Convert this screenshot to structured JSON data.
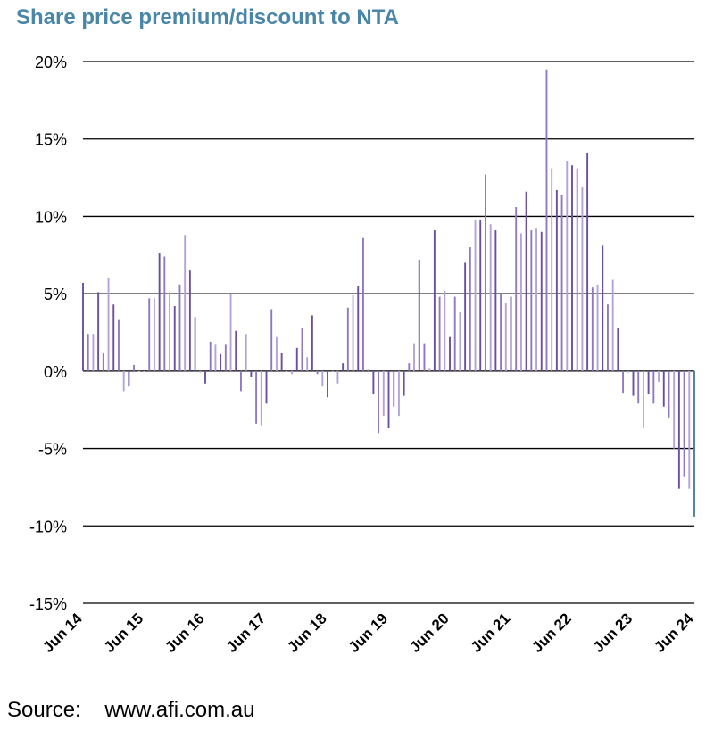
{
  "chart_data": {
    "type": "bar",
    "title": "Share price premium/discount to NTA",
    "xlabel": "",
    "ylabel": "",
    "ylim": [
      -15,
      20
    ],
    "y_ticks": [
      "20%",
      "15%",
      "10%",
      "5%",
      "0%",
      "-5%",
      "-10%",
      "-15%"
    ],
    "x_tick_labels": [
      "Jun 14",
      "Jun 15",
      "Jun 16",
      "Jun 17",
      "Jun 18",
      "Jun 19",
      "Jun 20",
      "Jun 21",
      "Jun 22",
      "Jun 23",
      "Jun 24"
    ],
    "grid": true,
    "colors": [
      "#6b4fa0",
      "#8f79c2",
      "#b3a3d9"
    ],
    "final_bar_color": "#4e7f9a",
    "series": [
      {
        "values": [
          5.7,
          2.4,
          2.4,
          5.1,
          1.2,
          6.0,
          4.3,
          3.3,
          -1.3,
          -1.0,
          0.4,
          0.0,
          0.0,
          4.7,
          4.7,
          7.6,
          7.4,
          5.1,
          4.2,
          5.6,
          8.8,
          6.5,
          3.5,
          -0.1,
          -0.8,
          1.9,
          1.7,
          1.1,
          1.7,
          5.0,
          2.6,
          -1.3,
          2.4,
          -0.4,
          -3.4,
          -3.5,
          -2.1,
          4.0,
          2.2,
          1.2,
          0.0,
          -0.2,
          1.5,
          2.8,
          0.9,
          3.6,
          -0.2,
          -1.0,
          -1.7,
          0.0,
          -0.8,
          0.5,
          4.1,
          4.9,
          5.5,
          8.6,
          0.1,
          -1.5,
          -4.0,
          -2.9,
          -3.7,
          -2.3,
          -2.9,
          -1.6,
          0.5,
          1.8,
          7.2,
          1.8,
          0.2,
          9.1,
          4.8,
          5.2,
          2.2,
          4.8,
          3.8,
          7.0,
          8.0,
          9.8,
          9.8,
          12.7,
          9.5,
          9.1,
          5.0,
          4.4,
          4.8,
          10.6,
          8.9,
          11.6,
          9.1,
          9.2,
          9.0,
          19.5,
          13.1,
          11.7,
          11.4,
          13.6,
          13.3,
          13.1,
          11.9,
          14.1,
          5.4,
          5.6,
          8.1,
          4.3,
          5.9,
          2.8,
          -1.4,
          -0.1,
          -1.6,
          -2.1,
          -3.7,
          -1.5,
          -2.1,
          -0.7,
          -2.3,
          -3.0,
          -5.0,
          -7.6,
          -6.8,
          -7.6,
          -9.4
        ]
      }
    ]
  },
  "source": {
    "label": "Source:",
    "value": "www.afi.com.au"
  }
}
